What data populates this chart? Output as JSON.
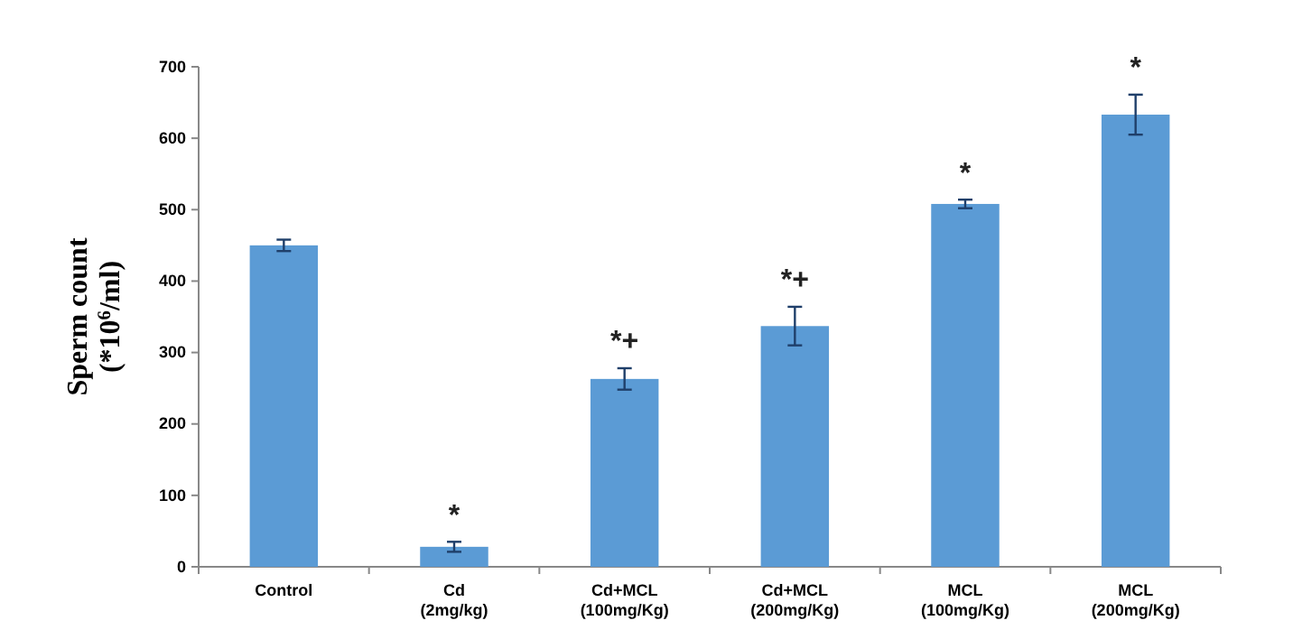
{
  "chart_data": {
    "type": "bar",
    "ylabel": "Sperm count\n(*10$^{6}$/ml)",
    "categories": [
      "Control",
      "Cd\n(2mg/kg)",
      "Cd+MCL\n(100mg/Kg)",
      "Cd+MCL\n(200mg/Kg)",
      "MCL\n(100mg/Kg)",
      "MCL\n(200mg/Kg)"
    ],
    "values": [
      450,
      28,
      263,
      337,
      508,
      633
    ],
    "errors": [
      8,
      7,
      15,
      27,
      6,
      28
    ],
    "color": "#5b9bd5",
    "ylim": [
      0,
      700
    ],
    "yticks": [
      0,
      100,
      200,
      300,
      400,
      500,
      600,
      700
    ],
    "grid": false,
    "value_labels": [
      null,
      "*",
      "*+",
      "*+",
      "*",
      "*"
    ]
  }
}
